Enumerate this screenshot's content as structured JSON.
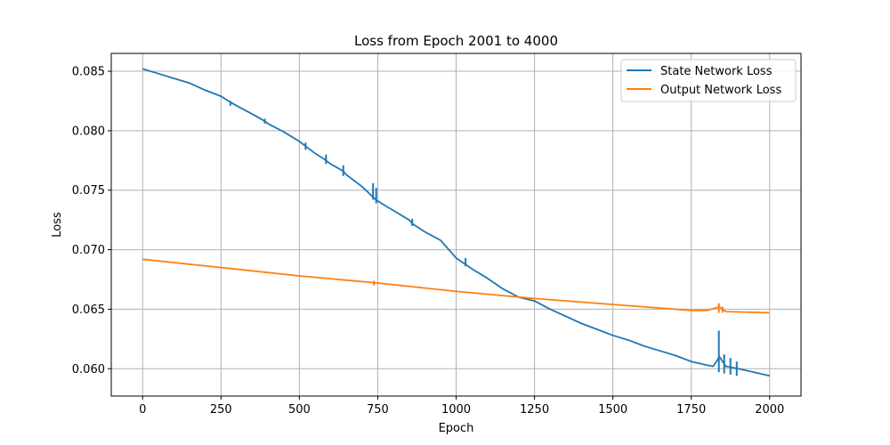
{
  "chart_data": {
    "type": "line",
    "title": "Loss from Epoch 2001 to 4000",
    "xlabel": "Epoch",
    "ylabel": "Loss",
    "xlim": [
      -100,
      2100
    ],
    "ylim": [
      0.0577,
      0.0865
    ],
    "xticks": [
      0,
      250,
      500,
      750,
      1000,
      1250,
      1500,
      1750,
      2000
    ],
    "xtick_labels": [
      "0",
      "250",
      "500",
      "750",
      "1000",
      "1250",
      "1500",
      "1750",
      "2000"
    ],
    "yticks": [
      0.06,
      0.065,
      0.07,
      0.075,
      0.08,
      0.085
    ],
    "ytick_labels": [
      "0.060",
      "0.065",
      "0.070",
      "0.075",
      "0.080",
      "0.085"
    ],
    "grid": true,
    "legend_position": "top-right",
    "series": [
      {
        "name": "State Network Loss",
        "color": "#1f77b4",
        "x": [
          0,
          50,
          100,
          150,
          200,
          250,
          280,
          300,
          350,
          390,
          400,
          450,
          500,
          520,
          550,
          580,
          600,
          640,
          650,
          700,
          740,
          750,
          780,
          800,
          850,
          860,
          900,
          950,
          1000,
          1050,
          1100,
          1150,
          1200,
          1250,
          1300,
          1350,
          1400,
          1450,
          1500,
          1550,
          1600,
          1650,
          1700,
          1750,
          1800,
          1820,
          1840,
          1860,
          1900,
          1950,
          2000
        ],
        "y": [
          0.0852,
          0.0848,
          0.0844,
          0.084,
          0.0834,
          0.0829,
          0.0824,
          0.0821,
          0.0814,
          0.0808,
          0.0806,
          0.0799,
          0.0791,
          0.0787,
          0.0781,
          0.0776,
          0.0772,
          0.0766,
          0.0763,
          0.0753,
          0.0743,
          0.0741,
          0.0736,
          0.0733,
          0.0725,
          0.0722,
          0.0715,
          0.0708,
          0.0693,
          0.0684,
          0.0676,
          0.0667,
          0.066,
          0.0657,
          0.065,
          0.0644,
          0.0638,
          0.0633,
          0.0628,
          0.0624,
          0.0619,
          0.0615,
          0.0611,
          0.0606,
          0.0603,
          0.0602,
          0.061,
          0.0602,
          0.06,
          0.0597,
          0.0594
        ]
      },
      {
        "name": "Output Network Loss",
        "color": "#ff7f0e",
        "x": [
          0,
          250,
          500,
          750,
          1000,
          1250,
          1500,
          1750,
          1800,
          1840,
          1860,
          2000
        ],
        "y": [
          0.0692,
          0.0685,
          0.0678,
          0.0672,
          0.0665,
          0.0659,
          0.0654,
          0.0649,
          0.0649,
          0.0652,
          0.0648,
          0.0647
        ]
      }
    ],
    "spikes": [
      {
        "series": 0,
        "x": 280,
        "y_top": 0.0825,
        "y_bottom": 0.0821
      },
      {
        "series": 0,
        "x": 390,
        "y_top": 0.081,
        "y_bottom": 0.0806
      },
      {
        "series": 0,
        "x": 520,
        "y_top": 0.079,
        "y_bottom": 0.0784
      },
      {
        "series": 0,
        "x": 585,
        "y_top": 0.078,
        "y_bottom": 0.0772
      },
      {
        "series": 0,
        "x": 640,
        "y_top": 0.0771,
        "y_bottom": 0.0762
      },
      {
        "series": 0,
        "x": 735,
        "y_top": 0.0756,
        "y_bottom": 0.0742
      },
      {
        "series": 0,
        "x": 745,
        "y_top": 0.0752,
        "y_bottom": 0.0739
      },
      {
        "series": 0,
        "x": 860,
        "y_top": 0.0726,
        "y_bottom": 0.072
      },
      {
        "series": 0,
        "x": 1030,
        "y_top": 0.0693,
        "y_bottom": 0.0686
      },
      {
        "series": 0,
        "x": 1838,
        "y_top": 0.0632,
        "y_bottom": 0.0597
      },
      {
        "series": 0,
        "x": 1855,
        "y_top": 0.0612,
        "y_bottom": 0.0596
      },
      {
        "series": 0,
        "x": 1875,
        "y_top": 0.0609,
        "y_bottom": 0.0595
      },
      {
        "series": 0,
        "x": 1895,
        "y_top": 0.0606,
        "y_bottom": 0.0594
      },
      {
        "series": 1,
        "x": 738,
        "y_top": 0.0674,
        "y_bottom": 0.067
      },
      {
        "series": 1,
        "x": 1838,
        "y_top": 0.0655,
        "y_bottom": 0.0647
      },
      {
        "series": 1,
        "x": 1850,
        "y_top": 0.0652,
        "y_bottom": 0.0647
      }
    ]
  }
}
